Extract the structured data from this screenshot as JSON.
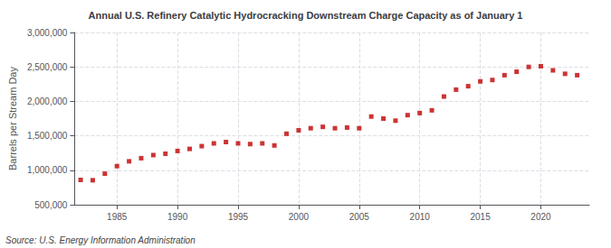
{
  "chart_data": {
    "type": "scatter",
    "title": "Annual U.S. Refinery Catalytic Hydrocracking Downstream Charge Capacity as of January 1",
    "ylabel": "Barrels per Stream Day",
    "annotations": [
      "Source: U.S. Energy Information Administration"
    ],
    "x": [
      1982,
      1983,
      1984,
      1985,
      1986,
      1987,
      1988,
      1989,
      1990,
      1991,
      1992,
      1993,
      1994,
      1995,
      1996,
      1997,
      1998,
      1999,
      2000,
      2001,
      2002,
      2003,
      2004,
      2005,
      2006,
      2007,
      2008,
      2009,
      2010,
      2011,
      2012,
      2013,
      2014,
      2015,
      2016,
      2017,
      2018,
      2019,
      2020,
      2021,
      2022,
      2023
    ],
    "values": [
      860000,
      855000,
      950000,
      1060000,
      1130000,
      1175000,
      1220000,
      1240000,
      1280000,
      1310000,
      1350000,
      1390000,
      1410000,
      1390000,
      1380000,
      1390000,
      1360000,
      1530000,
      1580000,
      1610000,
      1630000,
      1610000,
      1620000,
      1610000,
      1780000,
      1750000,
      1720000,
      1800000,
      1830000,
      1870000,
      2070000,
      2170000,
      2220000,
      2290000,
      2310000,
      2380000,
      2430000,
      2500000,
      2510000,
      2450000,
      2400000,
      2380000
    ],
    "color": "#c00000",
    "marker": "square",
    "xlim": [
      1981.5,
      2024
    ],
    "xticks": [
      1985,
      1990,
      1995,
      2000,
      2005,
      2010,
      2015,
      2020
    ],
    "ylim": [
      500000,
      3000000
    ],
    "yticks": [
      {
        "value": 500000,
        "label": "500,000"
      },
      {
        "value": 1000000,
        "label": "1,000,000"
      },
      {
        "value": 1500000,
        "label": "1,500,000"
      },
      {
        "value": 2000000,
        "label": "2,000,000"
      },
      {
        "value": 2500000,
        "label": "2,500,000"
      },
      {
        "value": 3000000,
        "label": "3,000,000"
      }
    ],
    "grid": true
  }
}
